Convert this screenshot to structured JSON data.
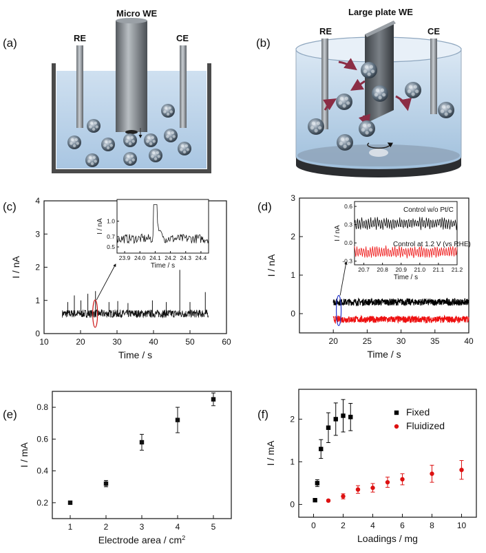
{
  "panels": {
    "a": {
      "label": "(a)",
      "title": "Micro WE",
      "re": "RE",
      "ce": "CE"
    },
    "b": {
      "label": "(b)",
      "title": "Large plate WE",
      "re": "RE",
      "ce": "CE"
    },
    "c": {
      "label": "(c)"
    },
    "d": {
      "label": "(d)"
    },
    "e": {
      "label": "(e)"
    },
    "f": {
      "label": "(f)"
    }
  },
  "chart_data": [
    {
      "id": "c",
      "type": "line",
      "xlabel": "Time / s",
      "ylabel": "I / nA",
      "xlim": [
        10,
        60
      ],
      "ylim": [
        0,
        4
      ],
      "xticks": [
        10,
        20,
        30,
        40,
        50,
        60
      ],
      "yticks": [
        0,
        1,
        2,
        3,
        4
      ],
      "signal": {
        "x_range": [
          15,
          55
        ],
        "baseline": 0.6,
        "noise": 0.12,
        "spikes": [
          [
            16.5,
            0.95
          ],
          [
            18.3,
            1.15
          ],
          [
            20.1,
            1.0
          ],
          [
            22.0,
            1.2
          ],
          [
            24.1,
            1.28
          ],
          [
            27.8,
            0.95
          ],
          [
            30.2,
            0.98
          ],
          [
            33.0,
            0.92
          ],
          [
            39.7,
            1.0
          ],
          [
            43.5,
            0.95
          ],
          [
            47.2,
            1.92
          ],
          [
            50.0,
            0.95
          ],
          [
            54.2,
            1.25
          ]
        ]
      },
      "highlight": {
        "x": 24,
        "color": "#cc1111"
      },
      "inset": {
        "xlabel": "Time / s",
        "ylabel": "I / nA",
        "xlim": [
          23.85,
          24.45
        ],
        "ylim": [
          0.38,
          1.42
        ],
        "xticks": [
          "23.9",
          "24.0",
          "24.1",
          "24.2",
          "24.3",
          "24.4"
        ],
        "yticks": [
          "0.5",
          "0.7",
          "1.0"
        ],
        "ytick_values": [
          0.5,
          0.7,
          1.0
        ],
        "spike": [
          24.1,
          1.32
        ]
      }
    },
    {
      "id": "d",
      "type": "line",
      "xlabel": "Time / s",
      "ylabel": "I / nA",
      "xlim": [
        15,
        40
      ],
      "ylim": [
        -0.5,
        3
      ],
      "xticks": [
        20,
        25,
        30,
        35,
        40
      ],
      "yticks": [
        0,
        1,
        2,
        3
      ],
      "series": [
        {
          "name": "Control w/o Pt/C",
          "color": "#000000",
          "baseline": 0.3,
          "noise": 0.09
        },
        {
          "name": "Control at 1.2 V (vs RHE)",
          "color": "#ee1111",
          "baseline": -0.15,
          "noise": 0.09
        }
      ],
      "x_range": [
        20,
        40
      ],
      "highlight": {
        "x": 20.8,
        "color": "#2233cc"
      },
      "inset": {
        "xlabel": "Time / s",
        "ylabel": "I / nA",
        "xlim": [
          20.65,
          21.2
        ],
        "ylim": [
          -0.36,
          0.68
        ],
        "xticks": [
          "20.7",
          "20.8",
          "20.9",
          "21.0",
          "21.1",
          "21.2"
        ],
        "yticks": [
          "-0.3",
          "0.0",
          "0.3",
          "0.6"
        ],
        "ytick_values": [
          -0.3,
          0.0,
          0.3,
          0.6
        ]
      }
    },
    {
      "id": "e",
      "type": "scatter",
      "xlabel": "Electrode area / cm",
      "xlabel_sup": "2",
      "ylabel": "I / mA",
      "xlim": [
        0.5,
        5.5
      ],
      "ylim": [
        0.1,
        0.9
      ],
      "xticks": [
        1,
        2,
        3,
        4,
        5
      ],
      "yticks": [
        0.2,
        0.4,
        0.6,
        0.8
      ],
      "x": [
        1,
        2,
        3,
        4,
        5
      ],
      "y": [
        0.2,
        0.32,
        0.58,
        0.72,
        0.85
      ],
      "err": [
        0.01,
        0.02,
        0.05,
        0.08,
        0.04
      ]
    },
    {
      "id": "f",
      "type": "scatter",
      "xlabel": "Loadings / mg",
      "ylabel": "I / mA",
      "xlim": [
        -1,
        11
      ],
      "ylim": [
        -0.3,
        2.7
      ],
      "xticks": [
        0,
        2,
        4,
        6,
        8,
        10
      ],
      "yticks": [
        0,
        1,
        2
      ],
      "legend": "top-right",
      "series": [
        {
          "name": "Fixed",
          "color": "#000000",
          "marker": "square",
          "x": [
            0.1,
            0.25,
            0.5,
            1.0,
            1.5,
            2.0,
            2.5
          ],
          "y": [
            0.1,
            0.5,
            1.3,
            1.8,
            2.0,
            2.08,
            2.05
          ],
          "err": [
            0.0,
            0.08,
            0.22,
            0.35,
            0.38,
            0.38,
            0.32
          ]
        },
        {
          "name": "Fluidized",
          "color": "#dd1111",
          "marker": "circle",
          "x": [
            1,
            2,
            3,
            4,
            5,
            6,
            8,
            10
          ],
          "y": [
            0.09,
            0.19,
            0.35,
            0.39,
            0.52,
            0.59,
            0.72,
            0.81
          ],
          "err": [
            0.02,
            0.06,
            0.09,
            0.1,
            0.12,
            0.13,
            0.2,
            0.22
          ]
        }
      ]
    }
  ]
}
